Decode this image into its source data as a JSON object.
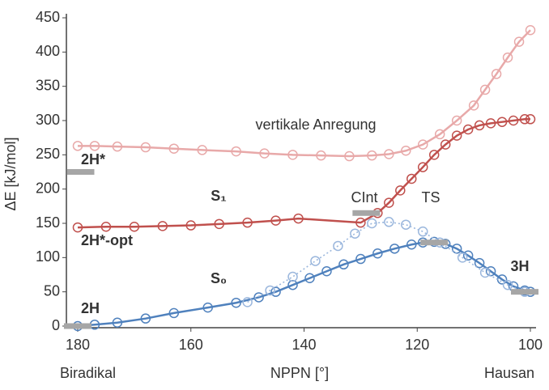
{
  "chart_data": {
    "type": "line",
    "xlabel": "NPPN [°]",
    "ylabel": "ΔE [kJ/mol]",
    "xlim": [
      182,
      99
    ],
    "ylim": [
      0,
      450
    ],
    "xticks": [
      180,
      160,
      140,
      120,
      100
    ],
    "yticks": [
      0,
      50,
      100,
      150,
      200,
      250,
      300,
      350,
      400,
      450
    ],
    "x_end_labels": [
      "Biradikal",
      "Hausan"
    ],
    "series": [
      {
        "color": "#e8a9a9",
        "style": "solid",
        "x": [
          180,
          177,
          173,
          168,
          163,
          158,
          152,
          147,
          142,
          137,
          132,
          128,
          125,
          122,
          119,
          116,
          113,
          110,
          108,
          106,
          104,
          102,
          100
        ],
        "values": [
          263,
          263,
          262,
          261,
          259,
          257,
          255,
          252,
          250,
          249,
          248,
          249,
          251,
          256,
          265,
          280,
          300,
          322,
          345,
          368,
          392,
          415,
          432
        ]
      },
      {
        "color": "#c0504d",
        "style": "solid",
        "x": [
          180,
          175,
          170,
          165,
          160,
          155,
          150,
          145,
          141,
          130,
          127,
          125,
          123,
          121,
          119,
          117,
          115,
          113,
          111,
          109,
          107,
          105,
          103,
          101,
          100
        ],
        "values": [
          144,
          145,
          145,
          146,
          147,
          149,
          151,
          154,
          157,
          151,
          165,
          180,
          198,
          215,
          232,
          250,
          265,
          278,
          287,
          293,
          296,
          298,
          300,
          302,
          302
        ]
      },
      {
        "color": "#4f81bd",
        "style": "solid",
        "x": [
          180,
          177,
          173,
          168,
          163,
          157,
          152,
          148,
          145,
          142,
          139,
          136,
          133,
          130,
          127,
          124,
          121,
          119,
          117,
          115,
          113,
          111,
          109,
          107,
          105,
          103,
          101,
          100
        ],
        "values": [
          0,
          2,
          5,
          11,
          19,
          27,
          34,
          42,
          50,
          60,
          70,
          80,
          90,
          98,
          106,
          113,
          119,
          122,
          123,
          120,
          113,
          103,
          92,
          80,
          68,
          58,
          52,
          50
        ]
      },
      {
        "color": "#9bb7dd",
        "style": "dotted",
        "x": [
          150,
          146,
          142,
          138,
          134,
          131,
          128,
          125,
          122,
          119,
          116,
          112,
          108,
          104,
          101
        ],
        "values": [
          35,
          52,
          72,
          95,
          117,
          135,
          150,
          152,
          148,
          138,
          122,
          100,
          78,
          60,
          50
        ]
      }
    ],
    "levels": {
      "color": "#a6a6a6",
      "x": [
        179.5,
        180,
        129,
        117,
        101
      ],
      "values": [
        225,
        0,
        165,
        122,
        50
      ]
    },
    "annotations": [
      "vertikale Anregung",
      "S₁",
      "S₀",
      "CInt",
      "TS",
      "2H*",
      "2H*-opt",
      "2H",
      "3H"
    ]
  }
}
